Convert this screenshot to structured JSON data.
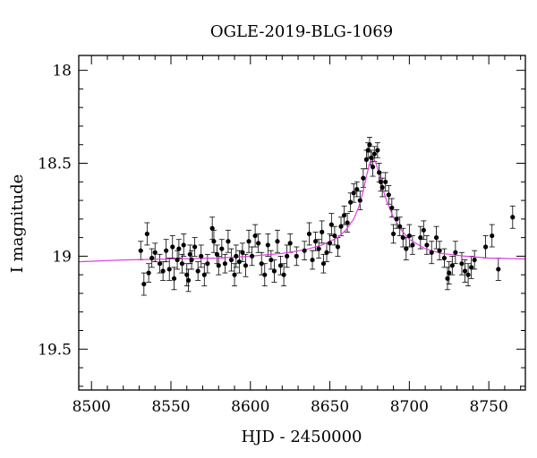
{
  "chart_data": {
    "type": "scatter",
    "title": "OGLE-2019-BLG-1069",
    "xlabel": "HJD - 2450000",
    "ylabel": "I magnitude",
    "xlim": [
      8492,
      8773
    ],
    "ylim": [
      19.72,
      17.92
    ],
    "y_inverted": true,
    "x_ticks": [
      8500,
      8550,
      8600,
      8650,
      8700,
      8750
    ],
    "y_ticks": [
      18,
      18.5,
      19,
      19.5
    ],
    "x_tick_labels": [
      "8500",
      "8550",
      "8600",
      "8650",
      "8700",
      "8750"
    ],
    "y_tick_labels": [
      "18",
      "18.5",
      "19",
      "19.5"
    ],
    "grid": false,
    "colors": {
      "points": "#000000",
      "model": "#e040e0"
    },
    "series": [
      {
        "kind": "points_with_errorbars",
        "points": [
          {
            "x": 8531,
            "y": 18.97,
            "err": 0.05
          },
          {
            "x": 8533,
            "y": 19.15,
            "err": 0.06
          },
          {
            "x": 8535,
            "y": 18.88,
            "err": 0.06
          },
          {
            "x": 8536,
            "y": 19.09,
            "err": 0.05
          },
          {
            "x": 8538,
            "y": 19.01,
            "err": 0.05
          },
          {
            "x": 8540,
            "y": 18.98,
            "err": 0.05
          },
          {
            "x": 8543,
            "y": 19.04,
            "err": 0.05
          },
          {
            "x": 8545,
            "y": 19.08,
            "err": 0.05
          },
          {
            "x": 8547,
            "y": 18.97,
            "err": 0.06
          },
          {
            "x": 8549,
            "y": 19.07,
            "err": 0.06
          },
          {
            "x": 8551,
            "y": 18.95,
            "err": 0.06
          },
          {
            "x": 8552,
            "y": 19.12,
            "err": 0.06
          },
          {
            "x": 8554,
            "y": 19.02,
            "err": 0.05
          },
          {
            "x": 8555,
            "y": 18.96,
            "err": 0.05
          },
          {
            "x": 8557,
            "y": 19.04,
            "err": 0.05
          },
          {
            "x": 8558,
            "y": 18.94,
            "err": 0.06
          },
          {
            "x": 8560,
            "y": 19.1,
            "err": 0.06
          },
          {
            "x": 8561,
            "y": 19.13,
            "err": 0.06
          },
          {
            "x": 8562,
            "y": 18.99,
            "err": 0.05
          },
          {
            "x": 8563,
            "y": 19.02,
            "err": 0.05
          },
          {
            "x": 8565,
            "y": 18.95,
            "err": 0.05
          },
          {
            "x": 8567,
            "y": 19.08,
            "err": 0.05
          },
          {
            "x": 8569,
            "y": 19.0,
            "err": 0.06
          },
          {
            "x": 8571,
            "y": 19.1,
            "err": 0.06
          },
          {
            "x": 8573,
            "y": 19.04,
            "err": 0.05
          },
          {
            "x": 8576,
            "y": 18.85,
            "err": 0.06
          },
          {
            "x": 8577,
            "y": 18.92,
            "err": 0.06
          },
          {
            "x": 8579,
            "y": 18.99,
            "err": 0.05
          },
          {
            "x": 8580,
            "y": 19.05,
            "err": 0.05
          },
          {
            "x": 8582,
            "y": 18.96,
            "err": 0.05
          },
          {
            "x": 8584,
            "y": 19.04,
            "err": 0.05
          },
          {
            "x": 8586,
            "y": 18.92,
            "err": 0.06
          },
          {
            "x": 8588,
            "y": 19.02,
            "err": 0.06
          },
          {
            "x": 8590,
            "y": 19.1,
            "err": 0.06
          },
          {
            "x": 8591,
            "y": 19.0,
            "err": 0.06
          },
          {
            "x": 8593,
            "y": 19.03,
            "err": 0.06
          },
          {
            "x": 8595,
            "y": 18.98,
            "err": 0.05
          },
          {
            "x": 8597,
            "y": 19.05,
            "err": 0.06
          },
          {
            "x": 8599,
            "y": 18.92,
            "err": 0.06
          },
          {
            "x": 8601,
            "y": 19.0,
            "err": 0.05
          },
          {
            "x": 8603,
            "y": 18.89,
            "err": 0.06
          },
          {
            "x": 8605,
            "y": 18.93,
            "err": 0.05
          },
          {
            "x": 8607,
            "y": 19.04,
            "err": 0.06
          },
          {
            "x": 8609,
            "y": 19.1,
            "err": 0.06
          },
          {
            "x": 8611,
            "y": 18.94,
            "err": 0.06
          },
          {
            "x": 8613,
            "y": 19.02,
            "err": 0.05
          },
          {
            "x": 8615,
            "y": 19.08,
            "err": 0.06
          },
          {
            "x": 8617,
            "y": 18.92,
            "err": 0.06
          },
          {
            "x": 8619,
            "y": 19.05,
            "err": 0.05
          },
          {
            "x": 8621,
            "y": 19.1,
            "err": 0.06
          },
          {
            "x": 8623,
            "y": 19.0,
            "err": 0.06
          },
          {
            "x": 8625,
            "y": 18.93,
            "err": 0.05
          },
          {
            "x": 8629,
            "y": 19.0,
            "err": 0.05
          },
          {
            "x": 8634,
            "y": 18.97,
            "err": 0.05
          },
          {
            "x": 8637,
            "y": 18.88,
            "err": 0.06
          },
          {
            "x": 8639,
            "y": 19.02,
            "err": 0.05
          },
          {
            "x": 8641,
            "y": 18.92,
            "err": 0.05
          },
          {
            "x": 8643,
            "y": 18.96,
            "err": 0.05
          },
          {
            "x": 8645,
            "y": 18.87,
            "err": 0.06
          },
          {
            "x": 8646,
            "y": 19.04,
            "err": 0.05
          },
          {
            "x": 8648,
            "y": 18.98,
            "err": 0.05
          },
          {
            "x": 8650,
            "y": 18.93,
            "err": 0.05
          },
          {
            "x": 8651,
            "y": 18.83,
            "err": 0.06
          },
          {
            "x": 8653,
            "y": 18.89,
            "err": 0.05
          },
          {
            "x": 8655,
            "y": 18.95,
            "err": 0.05
          },
          {
            "x": 8657,
            "y": 18.84,
            "err": 0.05
          },
          {
            "x": 8659,
            "y": 18.78,
            "err": 0.05
          },
          {
            "x": 8661,
            "y": 18.82,
            "err": 0.05
          },
          {
            "x": 8663,
            "y": 18.71,
            "err": 0.05
          },
          {
            "x": 8665,
            "y": 18.66,
            "err": 0.05
          },
          {
            "x": 8667,
            "y": 18.64,
            "err": 0.04
          },
          {
            "x": 8669,
            "y": 18.7,
            "err": 0.05
          },
          {
            "x": 8671,
            "y": 18.58,
            "err": 0.05
          },
          {
            "x": 8673,
            "y": 18.48,
            "err": 0.05
          },
          {
            "x": 8674,
            "y": 18.43,
            "err": 0.04
          },
          {
            "x": 8675,
            "y": 18.4,
            "err": 0.04
          },
          {
            "x": 8676,
            "y": 18.47,
            "err": 0.04
          },
          {
            "x": 8677,
            "y": 18.52,
            "err": 0.05
          },
          {
            "x": 8678,
            "y": 18.45,
            "err": 0.04
          },
          {
            "x": 8680,
            "y": 18.43,
            "err": 0.04
          },
          {
            "x": 8681,
            "y": 18.55,
            "err": 0.05
          },
          {
            "x": 8682,
            "y": 18.6,
            "err": 0.05
          },
          {
            "x": 8683,
            "y": 18.63,
            "err": 0.05
          },
          {
            "x": 8685,
            "y": 18.6,
            "err": 0.05
          },
          {
            "x": 8687,
            "y": 18.67,
            "err": 0.05
          },
          {
            "x": 8689,
            "y": 18.74,
            "err": 0.05
          },
          {
            "x": 8690,
            "y": 18.88,
            "err": 0.05
          },
          {
            "x": 8692,
            "y": 18.8,
            "err": 0.05
          },
          {
            "x": 8694,
            "y": 18.84,
            "err": 0.05
          },
          {
            "x": 8696,
            "y": 18.9,
            "err": 0.05
          },
          {
            "x": 8698,
            "y": 18.96,
            "err": 0.06
          },
          {
            "x": 8700,
            "y": 18.89,
            "err": 0.06
          },
          {
            "x": 8702,
            "y": 18.94,
            "err": 0.05
          },
          {
            "x": 8707,
            "y": 18.9,
            "err": 0.06
          },
          {
            "x": 8709,
            "y": 18.86,
            "err": 0.05
          },
          {
            "x": 8711,
            "y": 18.94,
            "err": 0.05
          },
          {
            "x": 8714,
            "y": 18.98,
            "err": 0.06
          },
          {
            "x": 8717,
            "y": 18.9,
            "err": 0.06
          },
          {
            "x": 8719,
            "y": 18.97,
            "err": 0.05
          },
          {
            "x": 8722,
            "y": 19.01,
            "err": 0.05
          },
          {
            "x": 8724,
            "y": 19.12,
            "err": 0.06
          },
          {
            "x": 8725,
            "y": 19.09,
            "err": 0.06
          },
          {
            "x": 8727,
            "y": 19.05,
            "err": 0.05
          },
          {
            "x": 8729,
            "y": 18.98,
            "err": 0.06
          },
          {
            "x": 8733,
            "y": 19.04,
            "err": 0.06
          },
          {
            "x": 8735,
            "y": 19.08,
            "err": 0.06
          },
          {
            "x": 8737,
            "y": 19.1,
            "err": 0.06
          },
          {
            "x": 8739,
            "y": 19.06,
            "err": 0.06
          },
          {
            "x": 8741,
            "y": 19.02,
            "err": 0.05
          },
          {
            "x": 8748,
            "y": 18.95,
            "err": 0.06
          },
          {
            "x": 8752,
            "y": 18.89,
            "err": 0.06
          },
          {
            "x": 8756,
            "y": 19.07,
            "err": 0.06
          },
          {
            "x": 8765,
            "y": 18.79,
            "err": 0.06
          }
        ]
      },
      {
        "kind": "model_line",
        "x": [
          8492,
          8520,
          8550,
          8580,
          8600,
          8620,
          8635,
          8645,
          8655,
          8660,
          8665,
          8668,
          8671,
          8673,
          8675,
          8676,
          8677,
          8678,
          8679,
          8681,
          8683,
          8686,
          8690,
          8695,
          8700,
          8710,
          8720,
          8735,
          8750,
          8773
        ],
        "y": [
          19.03,
          19.02,
          19.015,
          19.01,
          19.0,
          18.985,
          18.965,
          18.94,
          18.9,
          18.86,
          18.8,
          18.74,
          18.65,
          18.57,
          18.5,
          18.48,
          18.47,
          18.48,
          18.5,
          18.56,
          18.63,
          18.71,
          18.79,
          18.86,
          18.91,
          18.96,
          18.985,
          19.0,
          19.01,
          19.015
        ]
      }
    ]
  }
}
